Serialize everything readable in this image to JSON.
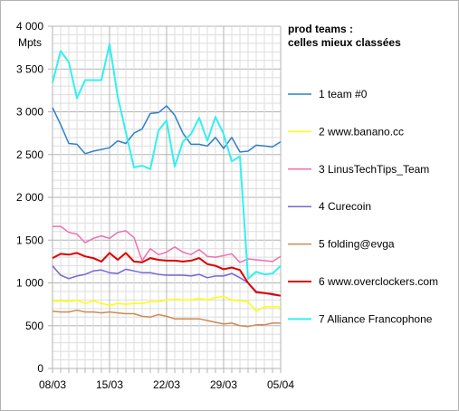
{
  "chart_data": {
    "type": "line",
    "title_lines": [
      "prod teams :",
      "celles mieux classées"
    ],
    "ylabel": "Mpts",
    "ylim": [
      0,
      4000
    ],
    "yticks": [
      0,
      500,
      1000,
      1500,
      2000,
      2500,
      3000,
      3500,
      4000
    ],
    "ytick_labels": [
      "0",
      "500",
      "1 000",
      "1 500",
      "2 000",
      "2 500",
      "3 000",
      "3 500",
      "4 000"
    ],
    "x_dates": [
      "08/03",
      "09/03",
      "10/03",
      "11/03",
      "12/03",
      "13/03",
      "14/03",
      "15/03",
      "16/03",
      "17/03",
      "18/03",
      "19/03",
      "20/03",
      "21/03",
      "22/03",
      "23/03",
      "24/03",
      "25/03",
      "26/03",
      "27/03",
      "28/03",
      "29/03",
      "30/03",
      "31/03",
      "01/04",
      "02/04",
      "03/04",
      "04/04",
      "05/04"
    ],
    "xtick_labels": [
      "08/03",
      "15/03",
      "22/03",
      "29/03",
      "05/04"
    ],
    "grid": true,
    "legend_position": "right",
    "series": [
      {
        "name": "1 team #0",
        "color": "#2f80c8",
        "width": 1.5,
        "values": [
          3050,
          2850,
          2630,
          2620,
          2510,
          2540,
          2560,
          2580,
          2660,
          2630,
          2750,
          2800,
          2980,
          2990,
          3070,
          2960,
          2750,
          2620,
          2620,
          2600,
          2700,
          2570,
          2700,
          2530,
          2540,
          2610,
          2600,
          2590,
          2650
        ]
      },
      {
        "name": "2 www.banano.cc",
        "color": "#ffff00",
        "width": 1.5,
        "values": [
          780,
          790,
          780,
          800,
          760,
          790,
          760,
          740,
          760,
          750,
          760,
          760,
          780,
          780,
          800,
          810,
          800,
          800,
          820,
          800,
          830,
          840,
          800,
          790,
          780,
          670,
          720,
          720,
          720
        ]
      },
      {
        "name": "3 LinusTechTips_Team",
        "color": "#ee70b0",
        "width": 1.5,
        "values": [
          1660,
          1660,
          1590,
          1570,
          1470,
          1520,
          1550,
          1520,
          1590,
          1610,
          1530,
          1260,
          1400,
          1330,
          1360,
          1420,
          1360,
          1330,
          1390,
          1310,
          1300,
          1320,
          1340,
          1240,
          1280,
          1270,
          1260,
          1250,
          1310
        ]
      },
      {
        "name": "4 Curecoin",
        "color": "#7866d0",
        "width": 1.5,
        "values": [
          1200,
          1090,
          1050,
          1080,
          1100,
          1140,
          1150,
          1120,
          1110,
          1160,
          1140,
          1120,
          1120,
          1100,
          1090,
          1090,
          1090,
          1080,
          1100,
          1060,
          1080,
          1080,
          1110,
          1060,
          1000,
          900,
          880,
          860,
          850
        ]
      },
      {
        "name": "5 folding@evga",
        "color": "#cf8a50",
        "width": 1.5,
        "values": [
          670,
          660,
          660,
          680,
          660,
          660,
          650,
          660,
          650,
          640,
          640,
          610,
          600,
          630,
          610,
          580,
          580,
          580,
          580,
          560,
          540,
          520,
          530,
          500,
          490,
          510,
          510,
          530,
          530
        ]
      },
      {
        "name": "6 www.overclockers.com",
        "color": "#e00000",
        "width": 2,
        "values": [
          1290,
          1340,
          1330,
          1350,
          1310,
          1290,
          1250,
          1350,
          1270,
          1350,
          1250,
          1240,
          1290,
          1270,
          1260,
          1260,
          1250,
          1260,
          1290,
          1220,
          1200,
          1160,
          1180,
          1150,
          1000,
          890,
          880,
          870,
          850
        ]
      },
      {
        "name": "7 Alliance Francophone",
        "color": "#33f0f0",
        "width": 2,
        "values": [
          3340,
          3710,
          3580,
          3160,
          3370,
          3370,
          3370,
          3790,
          3180,
          2760,
          2350,
          2370,
          2330,
          2780,
          2900,
          2360,
          2650,
          2740,
          2930,
          2660,
          2940,
          2740,
          2420,
          2480,
          1050,
          1130,
          1100,
          1110,
          1200
        ]
      }
    ]
  }
}
